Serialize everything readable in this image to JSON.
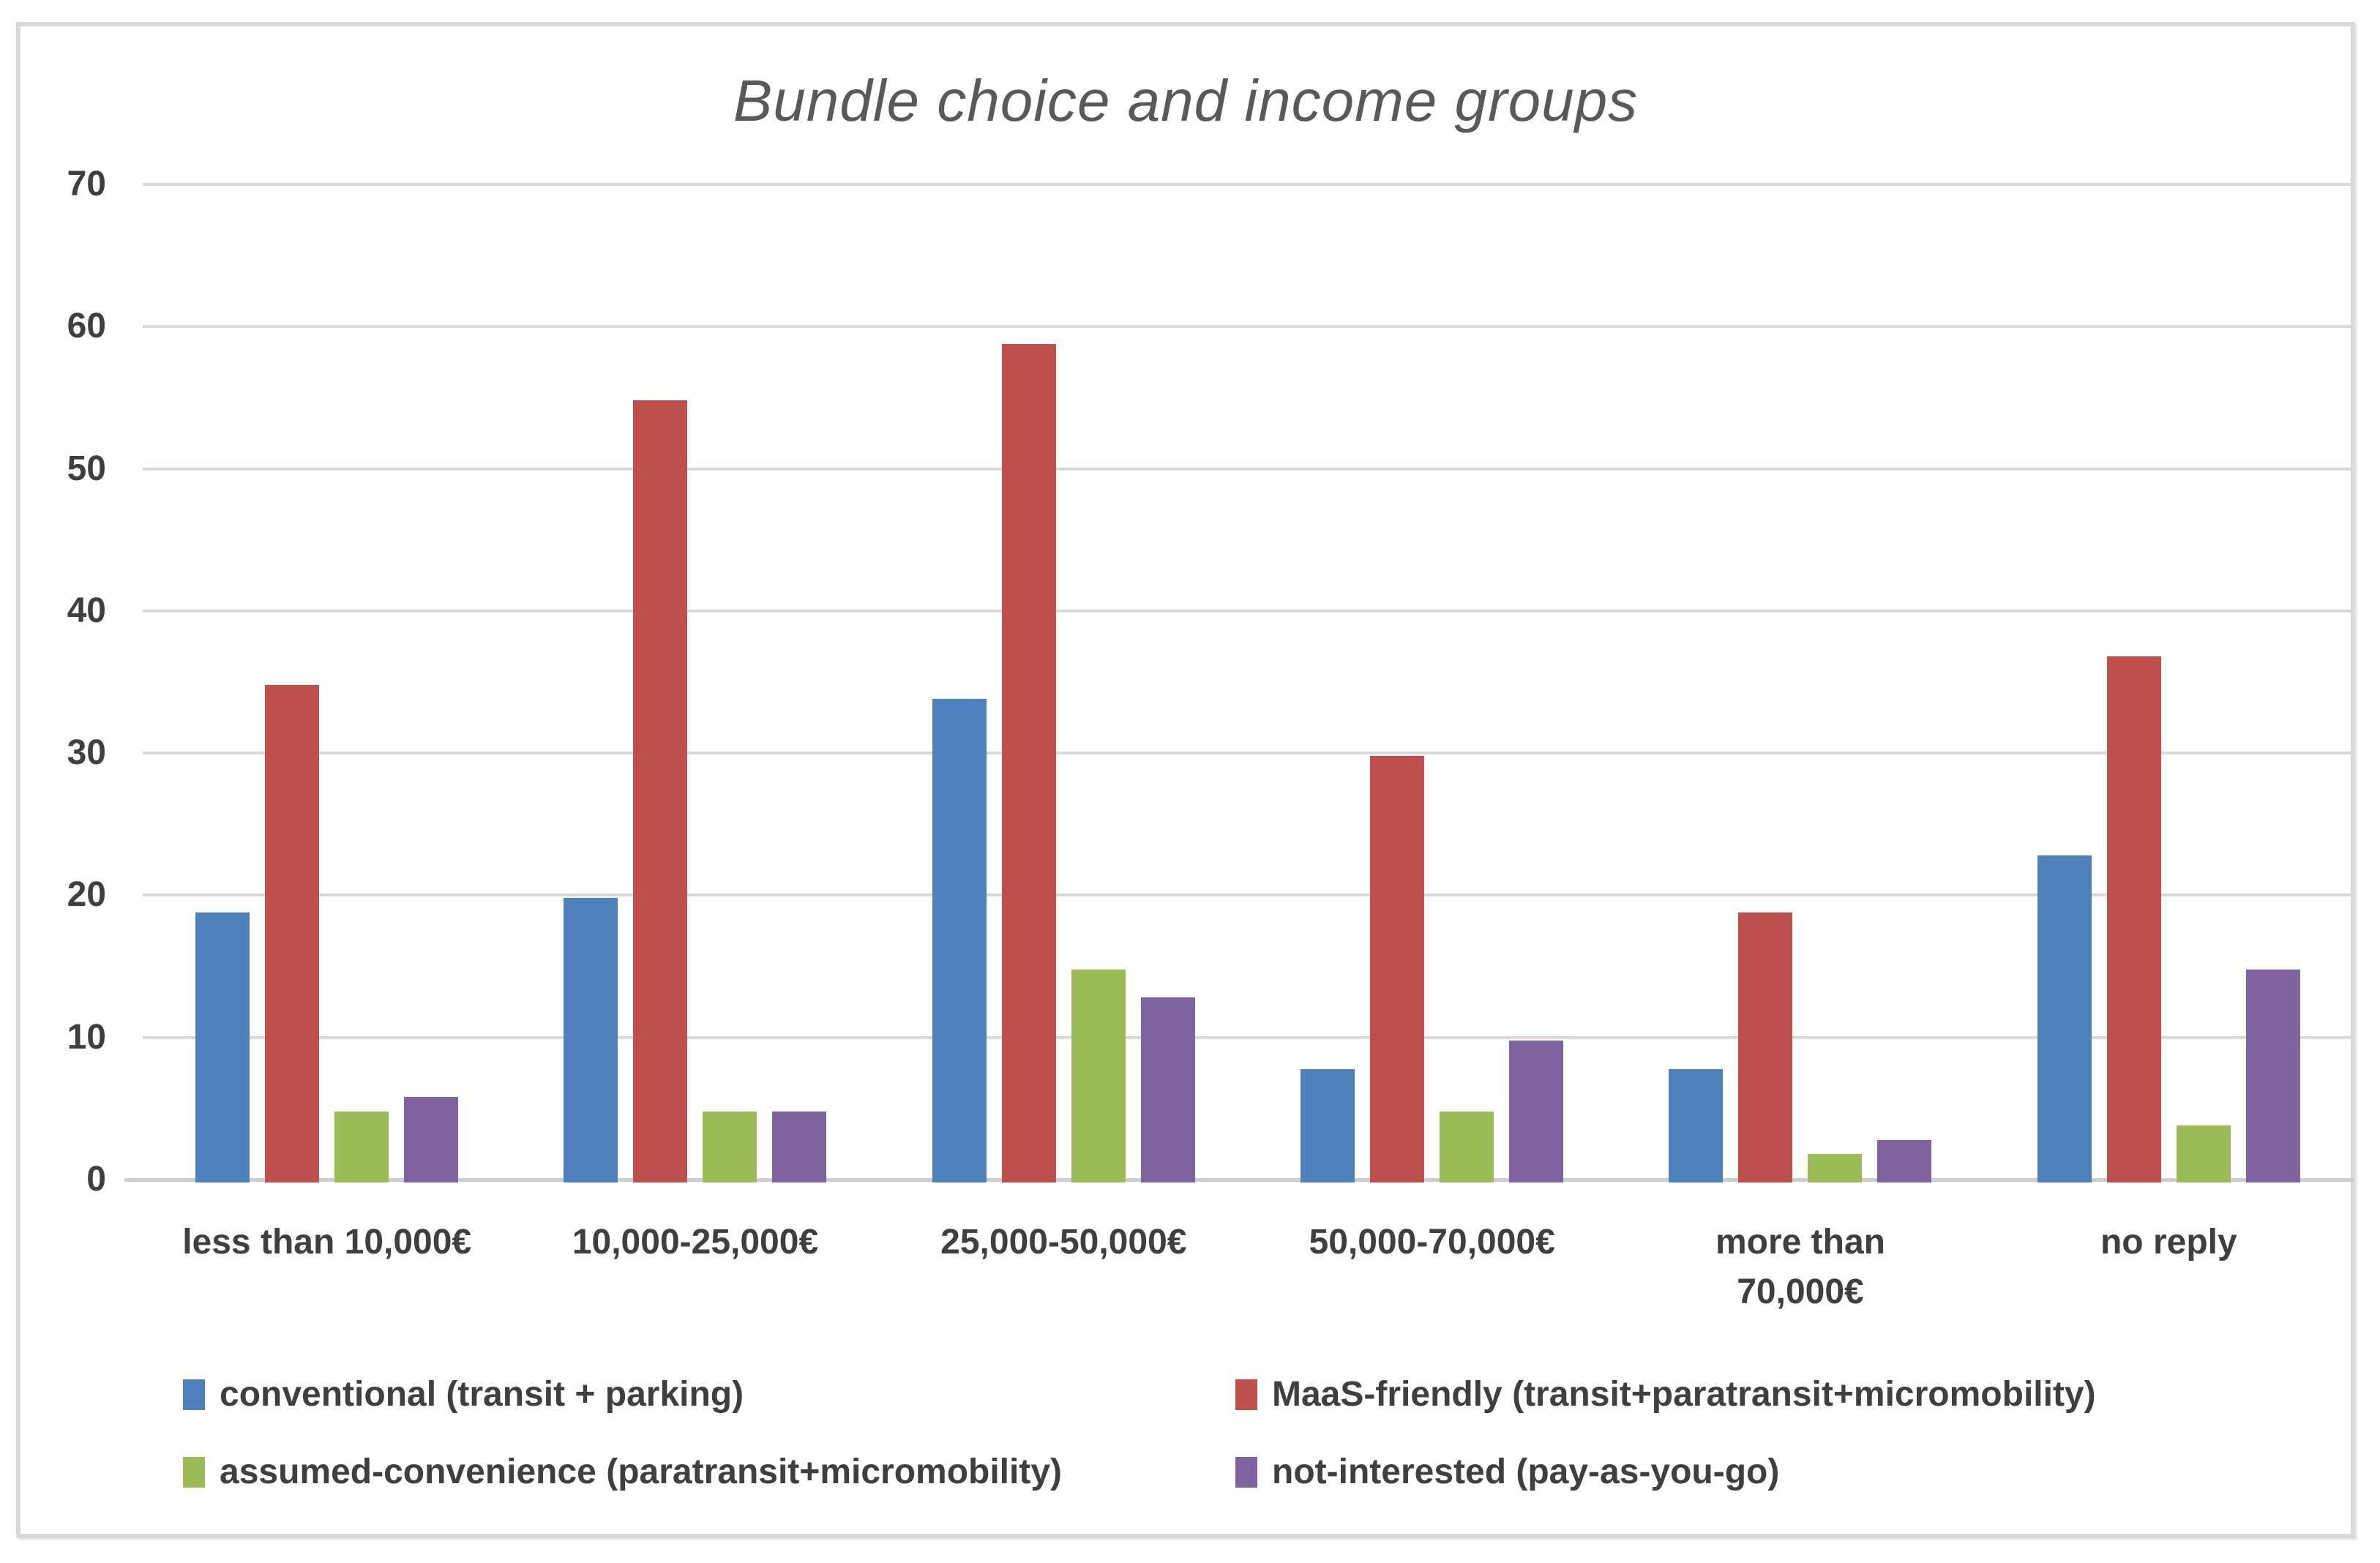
{
  "chart_data": {
    "type": "bar",
    "title": "Bundle choice and income groups",
    "categories": [
      "less than 10,000€",
      "10,000-25,000€",
      "25,000-50,000€",
      "50,000-70,000€",
      "more than\n70,000€",
      "no reply"
    ],
    "series": [
      {
        "name": "conventional (transit + parking)",
        "color": "#4F81BD",
        "values": [
          19,
          20,
          34,
          8,
          8,
          23
        ]
      },
      {
        "name": "MaaS-friendly (transit+paratransit+micromobility)",
        "color": "#C0504D",
        "values": [
          35,
          55,
          59,
          30,
          19,
          37
        ]
      },
      {
        "name": "assumed-convenience (paratransit+micromobility)",
        "color": "#9BBB59",
        "values": [
          5,
          5,
          15,
          5,
          2,
          4
        ]
      },
      {
        "name": "not-interested (pay-as-you-go)",
        "color": "#8064A2",
        "values": [
          6,
          5,
          13,
          10,
          3,
          15
        ]
      }
    ],
    "y_axis": {
      "min": 0,
      "max": 70,
      "step": 10,
      "tick_labels": [
        "0",
        "10",
        "20",
        "30",
        "40",
        "50",
        "60",
        "70"
      ]
    },
    "xlabel": "",
    "ylabel": "",
    "grid": true,
    "legend_position": "bottom"
  },
  "colors": {
    "background": "#FFFFFF",
    "frame_border": "#D9D9D9",
    "gridline": "#D9D9D9",
    "axis_line": "#CDCDCD",
    "label_text": "#3F3F3F",
    "title_text": "#595959"
  }
}
